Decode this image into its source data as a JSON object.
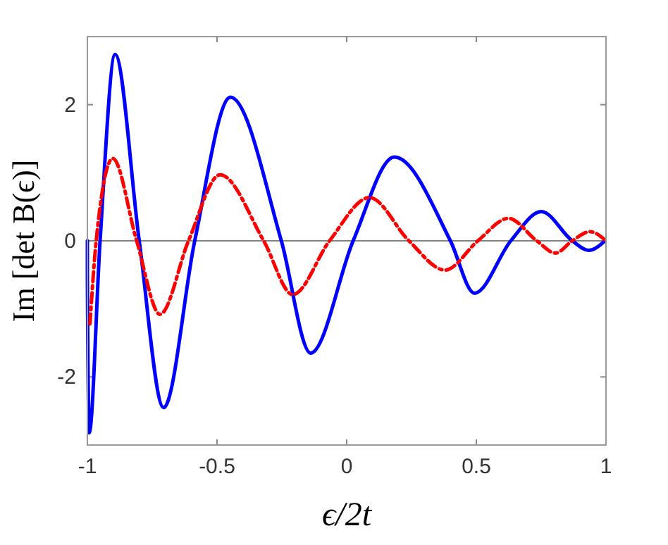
{
  "chart_data": {
    "type": "line",
    "xlabel": "ϵ/2t",
    "ylabel": "Im [det B(ϵ)]",
    "xlim": [
      -1,
      1
    ],
    "xticks": [
      -1,
      -0.5,
      0,
      0.5,
      1
    ],
    "ylim": [
      -3,
      3
    ],
    "yticks": [
      -2,
      0,
      2
    ],
    "grid": false,
    "marker": "none",
    "ref_lines": [
      {
        "axis": "y",
        "value": 0,
        "color": "#808080"
      }
    ],
    "series": [
      {
        "color": "#0000ff",
        "line_style": "solid",
        "x": [
          -1,
          -1,
          -0.993,
          -0.951,
          -0.893,
          -0.8,
          -0.706,
          -0.586,
          -0.448,
          -0.252,
          -0.139,
          0.025,
          0.184,
          0.4,
          0.493,
          0.633,
          0.751,
          0.87,
          0.933,
          0.996
        ],
        "values": [
          0,
          -0.5,
          -2.82,
          0,
          2.74,
          0,
          -2.45,
          0,
          2.11,
          0,
          -1.65,
          0,
          1.23,
          0,
          -0.77,
          0,
          0.43,
          0,
          -0.14,
          0
        ]
      },
      {
        "color": "#ff0000",
        "line_style": "dashed",
        "x": [
          -0.99,
          -0.966,
          -0.902,
          -0.81,
          -0.72,
          -0.61,
          -0.488,
          -0.32,
          -0.208,
          -0.066,
          0.088,
          0.24,
          0.379,
          0.506,
          0.624,
          0.733,
          0.805,
          0.87,
          0.938,
          1
        ],
        "values": [
          -1.22,
          0,
          1.21,
          0,
          -1.08,
          0,
          0.97,
          0,
          -0.79,
          0,
          0.635,
          0,
          -0.43,
          0,
          0.33,
          0,
          -0.18,
          0,
          0.135,
          0
        ]
      }
    ]
  }
}
